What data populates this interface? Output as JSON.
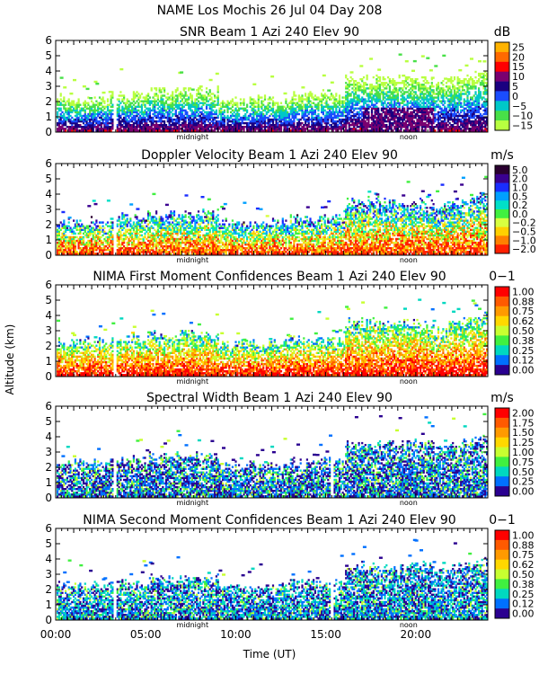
{
  "header": {
    "title": "NAME Los Mochis   26 Jul 04 Day 208"
  },
  "xaxis": {
    "label": "Time (UT)",
    "range": [
      0,
      24
    ],
    "ticks": [
      {
        "value": 0,
        "label": "00:00"
      },
      {
        "value": 5,
        "label": "05:00"
      },
      {
        "value": 10,
        "label": "10:00"
      },
      {
        "value": 15,
        "label": "15:00"
      },
      {
        "value": 20,
        "label": "20:00"
      }
    ],
    "notes": [
      {
        "value": 7.6,
        "label": "midnight"
      },
      {
        "value": 19.6,
        "label": "noon"
      }
    ]
  },
  "yaxis": {
    "label": "Altitude (km)",
    "range": [
      0,
      6
    ],
    "ticks": [
      {
        "value": 0,
        "label": "0"
      },
      {
        "value": 1,
        "label": "1"
      },
      {
        "value": 2,
        "label": "2"
      },
      {
        "value": 3,
        "label": "3"
      },
      {
        "value": 4,
        "label": "4"
      },
      {
        "value": 5,
        "label": "5"
      },
      {
        "value": 6,
        "label": "6"
      }
    ]
  },
  "colors": {
    "missing": "#ffffff",
    "frame": "#000000"
  },
  "chart_data": [
    {
      "type": "heatmap",
      "title": "SNR Beam 1 Azi 240 Elev 90",
      "unit": "dB",
      "colorbar": {
        "ticks": [
          "25",
          "20",
          "15",
          "10",
          "5",
          "0",
          "−5",
          "−10",
          "−15"
        ],
        "colors": [
          "#ffb300",
          "#ff6a00",
          "#ff0000",
          "#7a0070",
          "#1a0080",
          "#1a4dff",
          "#00c8c8",
          "#48e048",
          "#b8ff40"
        ]
      },
      "xlim": [
        0,
        24
      ],
      "ylim": [
        0,
        6
      ]
    },
    {
      "type": "heatmap",
      "title": "Doppler Velocity Beam 1 Azi 240 Elev 90",
      "unit": "m/s",
      "colorbar": {
        "ticks": [
          "5.0",
          "2.0",
          "1.0",
          "0.5",
          "0.2",
          "0.0",
          "−0.2",
          "−0.5",
          "−1.0",
          "−2.0"
        ],
        "colors": [
          "#2a0030",
          "#3a0090",
          "#1a2dff",
          "#00a0ff",
          "#00e0c8",
          "#40f040",
          "#d8ff40",
          "#ffd000",
          "#ff8000",
          "#ff2000"
        ]
      },
      "xlim": [
        0,
        24
      ],
      "ylim": [
        0,
        6
      ]
    },
    {
      "type": "heatmap",
      "title": "NIMA First Moment Confidences Beam 1 Azi 240 Elev 90",
      "unit": "0−1",
      "colorbar": {
        "ticks": [
          "1.00",
          "0.88",
          "0.75",
          "0.62",
          "0.50",
          "0.38",
          "0.25",
          "0.12",
          "0.00"
        ],
        "colors": [
          "#ff0000",
          "#ff5a00",
          "#ff9a00",
          "#ffd800",
          "#c8ff30",
          "#40f040",
          "#00d8c0",
          "#0070ff",
          "#2a0090"
        ]
      },
      "xlim": [
        0,
        24
      ],
      "ylim": [
        0,
        6
      ]
    },
    {
      "type": "heatmap",
      "title": "Spectral Width Beam 1 Azi 240 Elev 90",
      "unit": "m/s",
      "colorbar": {
        "ticks": [
          "2.00",
          "1.75",
          "1.50",
          "1.25",
          "1.00",
          "0.75",
          "0.50",
          "0.25",
          "0.00"
        ],
        "colors": [
          "#ff0000",
          "#ff5a00",
          "#ff9a00",
          "#ffd800",
          "#c8ff30",
          "#40f040",
          "#00d8c0",
          "#0070ff",
          "#2a0090"
        ]
      },
      "xlim": [
        0,
        24
      ],
      "ylim": [
        0,
        6
      ]
    },
    {
      "type": "heatmap",
      "title": "NIMA Second Moment Confidences Beam 1 Azi 240 Elev 90",
      "unit": "0−1",
      "colorbar": {
        "ticks": [
          "1.00",
          "0.88",
          "0.75",
          "0.62",
          "0.50",
          "0.38",
          "0.25",
          "0.12",
          "0.00"
        ],
        "colors": [
          "#ff0000",
          "#ff5a00",
          "#ff9a00",
          "#ffd800",
          "#c8ff30",
          "#40f040",
          "#00d8c0",
          "#0070ff",
          "#2a0090"
        ]
      },
      "xlim": [
        0,
        24
      ],
      "ylim": [
        0,
        6
      ]
    }
  ]
}
